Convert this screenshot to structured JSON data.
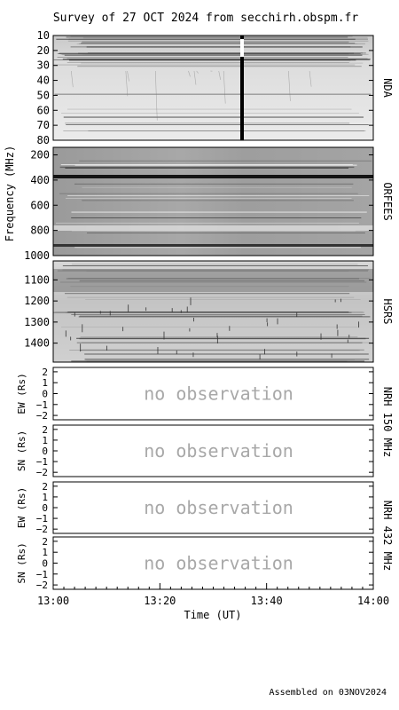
{
  "title": "Survey of 27 OCT 2024 from secchirh.obspm.fr",
  "footer": "Assembled on 03NOV2024",
  "chart_data": {
    "type": "heatmap",
    "xlabel": "Time (UT)",
    "x_ticks": [
      "13:00",
      "13:20",
      "13:40",
      "14:00"
    ],
    "xlim": [
      "13:00",
      "14:00"
    ],
    "ylabel": "Frequency (MHz)",
    "panels": [
      {
        "name": "NDA",
        "yticks": [
          "10",
          "20",
          "30",
          "40",
          "50",
          "60",
          "70",
          "80"
        ],
        "ylim": [
          10,
          80
        ],
        "tick_values": [
          10,
          20,
          30,
          40,
          50,
          60,
          70,
          80
        ]
      },
      {
        "name": "ORFEES",
        "yticks": [
          "200",
          "400",
          "600",
          "800",
          "1000"
        ],
        "ylim": [
          140,
          1000
        ],
        "tick_values": [
          200,
          400,
          600,
          800,
          1000
        ]
      },
      {
        "name": "HSRS",
        "yticks": [
          "1100",
          "1200",
          "1300",
          "1400"
        ],
        "ylim": [
          1010,
          1490
        ],
        "tick_values": [
          1100,
          1200,
          1300,
          1400
        ]
      }
    ],
    "nrh_groups": [
      {
        "label": "NRH 150 MHz",
        "panels": [
          {
            "ylabel": "EW (Rs)",
            "message": "no observation",
            "yticks": [
              "2",
              "1",
              "0",
              "−1",
              "−2"
            ],
            "ylim": [
              -2.4,
              2.4
            ]
          },
          {
            "ylabel": "SN (Rs)",
            "message": "no observation",
            "yticks": [
              "2",
              "1",
              "0",
              "−1",
              "−2"
            ],
            "ylim": [
              -2.4,
              2.4
            ]
          }
        ]
      },
      {
        "label": "NRH 432 MHz",
        "panels": [
          {
            "ylabel": "EW (Rs)",
            "message": "no observation",
            "yticks": [
              "2",
              "1",
              "0",
              "−1",
              "−2"
            ],
            "ylim": [
              -2.4,
              2.4
            ]
          },
          {
            "ylabel": "SN (Rs)",
            "message": "no observation",
            "yticks": [
              "2",
              "1",
              "0",
              "−1",
              "−2"
            ],
            "ylim": [
              -2.4,
              2.4
            ]
          }
        ]
      }
    ]
  }
}
